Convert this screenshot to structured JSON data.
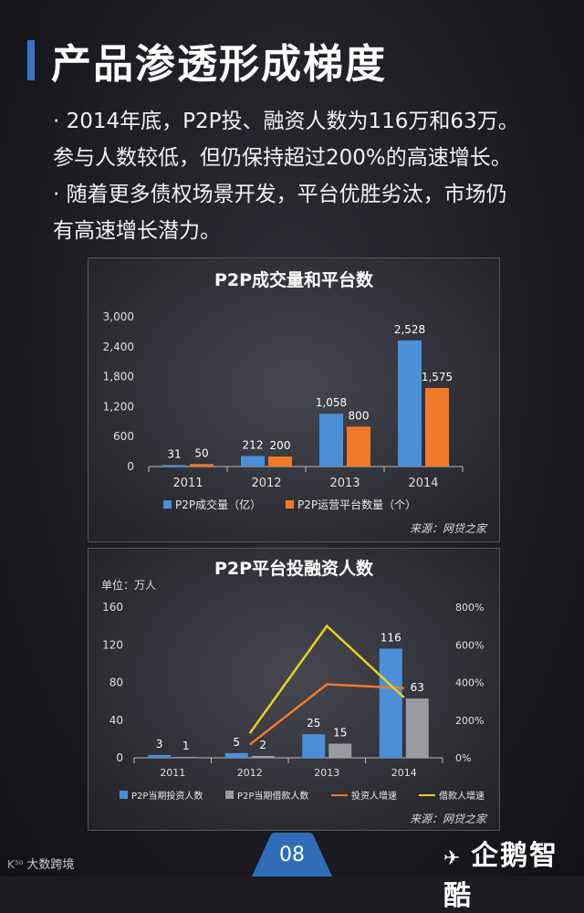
{
  "header": {
    "title": "产品渗透形成梯度",
    "lines": [
      "· 2014年底，P2P投、融资人数为116万和63万。",
      "参与人数较低，但仍保持超过200%的高速增长。",
      "· 随着更多债权场景开发，平台优胜劣汰，市场仍",
      "有高速增长潜力。"
    ]
  },
  "chart_data": [
    {
      "type": "bar",
      "title": "P2P成交量和平台数",
      "categories": [
        "2011",
        "2012",
        "2013",
        "2014"
      ],
      "series": [
        {
          "name": "P2P成交量（亿）",
          "values": [
            31,
            212,
            1058,
            2528
          ],
          "labels": [
            "31",
            "212",
            "1,058",
            "2,528"
          ],
          "color": "#4a8fd8"
        },
        {
          "name": "P2P运营平台数量（个）",
          "values": [
            50,
            200,
            800,
            1575
          ],
          "labels": [
            "50",
            "200",
            "800",
            "1,575"
          ],
          "color": "#f07a2a"
        }
      ],
      "yticks": [
        "0",
        "600",
        "1,200",
        "1,800",
        "2,400",
        "3,000"
      ],
      "ylim": [
        0,
        3000
      ],
      "legend": "bottom",
      "source": "来源：网贷之家"
    },
    {
      "type": "bar",
      "title": "P2P平台投融资人数",
      "unit": "单位：万人",
      "categories": [
        "2011",
        "2012",
        "2013",
        "2014"
      ],
      "series": [
        {
          "name": "P2P当期投资人数",
          "values": [
            3,
            5,
            25,
            116
          ],
          "labels": [
            "3",
            "5",
            "25",
            "116"
          ],
          "color": "#4a8fd8"
        },
        {
          "name": "P2P当期借款人数",
          "values": [
            1,
            2,
            15,
            63
          ],
          "labels": [
            "1",
            "2",
            "15",
            "63"
          ],
          "color": "#9a9aa0"
        }
      ],
      "lines": [
        {
          "name": "投资人增速",
          "axis": "right",
          "x": [
            "2012",
            "2013",
            "2014"
          ],
          "values": [
            70,
            390,
            370
          ],
          "color": "#f07a2a"
        },
        {
          "name": "借款人增速",
          "axis": "right",
          "x": [
            "2012",
            "2013",
            "2014"
          ],
          "values": [
            130,
            700,
            320
          ],
          "color": "#e8d21a"
        }
      ],
      "yticks": [
        "0",
        "40",
        "80",
        "120",
        "160"
      ],
      "ylim": [
        0,
        160
      ],
      "y2ticks": [
        "0%",
        "200%",
        "400%",
        "600%",
        "800%"
      ],
      "y2lim": [
        0,
        800
      ],
      "legend": "bottom",
      "source": "来源：网贷之家"
    }
  ],
  "footer": {
    "left": "大数跨境",
    "page": "08",
    "brand": "企鹅智酷"
  }
}
